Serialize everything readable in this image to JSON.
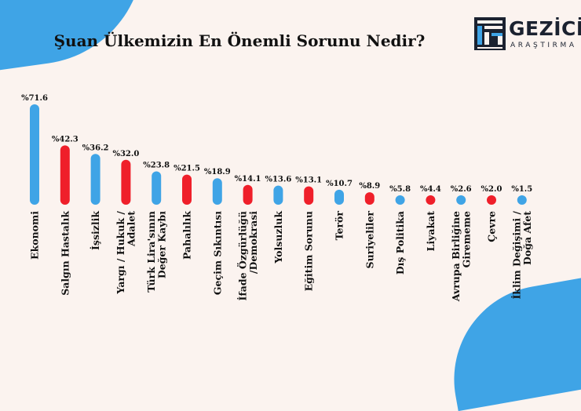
{
  "title": "Şuan Ülkemizin En Önemli Sorunu Nedir?",
  "logo": {
    "name": "GEZİCİ",
    "sub": "ARAŞTIRMA"
  },
  "colors": {
    "blue": "#3fa4e6",
    "red": "#ef1f2a",
    "background": "#fbf3ef"
  },
  "chart_data": {
    "type": "bar",
    "title": "Şuan Ülkemizin En Önemli Sorunu Nedir?",
    "xlabel": "",
    "ylabel": "",
    "ylim": [
      0,
      72
    ],
    "categories": [
      [
        "Ekonomi"
      ],
      [
        "Salgın Hastalık"
      ],
      [
        "İşsizlik"
      ],
      [
        "Yargı / Hukuk /",
        "Adalet"
      ],
      [
        "Türk Lira'sının",
        "Değer Kaybı"
      ],
      [
        "Pahalılık"
      ],
      [
        "Geçim Sıkıntısı"
      ],
      [
        "İfade Özgürlüğü",
        "/Demokrasi"
      ],
      [
        "Yolsuzluk"
      ],
      [
        "Eğitim Sorunu"
      ],
      [
        "Terör"
      ],
      [
        "Suriyeliler"
      ],
      [
        "Dış Politika"
      ],
      [
        "Liyakat"
      ],
      [
        "Avrupa Birliğine",
        "Girememe"
      ],
      [
        "Çevre"
      ],
      [
        "İklim Değişimi /",
        "Doğa Afet"
      ]
    ],
    "values": [
      71.6,
      42.3,
      36.2,
      32.0,
      23.8,
      21.5,
      18.9,
      14.1,
      13.6,
      13.1,
      10.7,
      8.9,
      5.8,
      4.4,
      2.6,
      2.0,
      1.5
    ],
    "labels": [
      "%71.6",
      "%42.3",
      "%36.2",
      "%32.0",
      "%23.8",
      "%21.5",
      "%18.9",
      "%14.1",
      "%13.6",
      "%13.1",
      "%10.7",
      "%8.9",
      "%5.8",
      "%4.4",
      "%2.6",
      "%2.0",
      "%1.5"
    ],
    "bar_colors": [
      "blue",
      "red",
      "blue",
      "red",
      "blue",
      "red",
      "blue",
      "red",
      "blue",
      "red",
      "blue",
      "red",
      "blue",
      "red",
      "blue",
      "red",
      "blue"
    ]
  }
}
